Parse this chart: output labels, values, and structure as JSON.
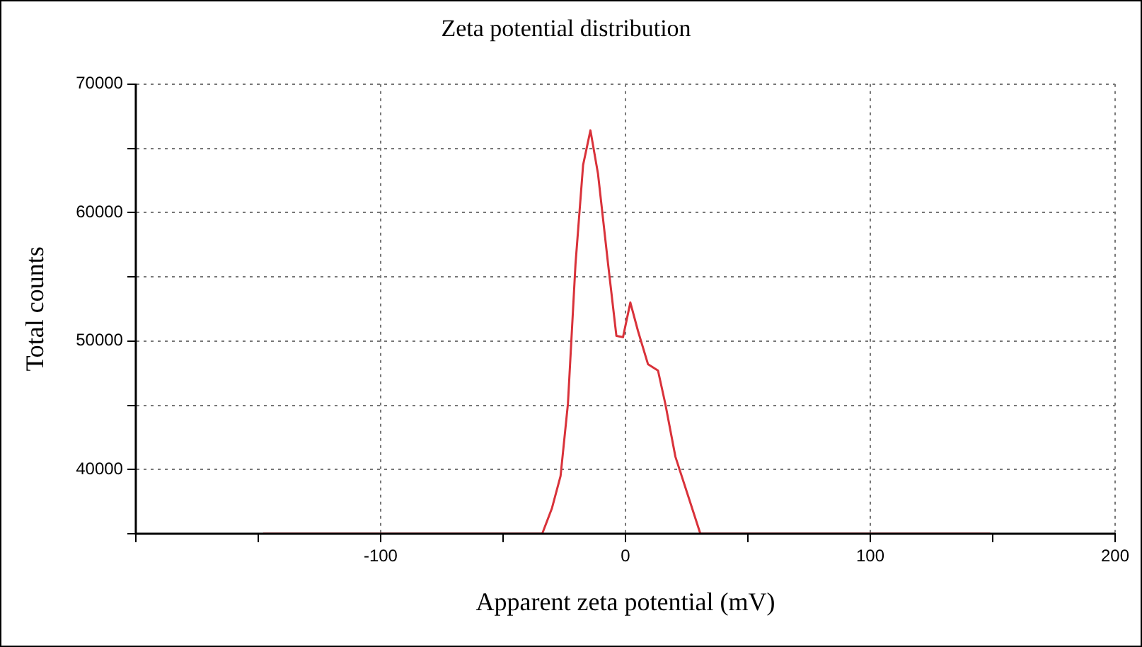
{
  "chart_data": {
    "type": "line",
    "title": "Zeta potential distribution",
    "xlabel": "Apparent zeta potential (mV)",
    "ylabel": "Total counts",
    "x": [
      -148,
      -34,
      -30,
      -26.5,
      -23.5,
      -20.4,
      -17.3,
      -14.3,
      -11.2,
      -7.1,
      -3.7,
      -1,
      2,
      5.1,
      9.2,
      13.3,
      16.3,
      20.4,
      25.5,
      30.6,
      149
    ],
    "series": [
      {
        "color": "#d9323a",
        "values": [
          35000,
          35000,
          37000,
          39500,
          45100,
          56000,
          63700,
          66400,
          63000,
          56000,
          50400,
          50300,
          53000,
          50800,
          48200,
          47700,
          45100,
          41000,
          38000,
          35000,
          35000
        ]
      }
    ],
    "xlim": [
      -200,
      200
    ],
    "xticks": [
      {
        "value": -200,
        "label": null
      },
      {
        "value": -150,
        "label": null
      },
      -100,
      {
        "value": -50,
        "label": null
      },
      0,
      {
        "value": 50,
        "label": null
      },
      100,
      {
        "value": 150,
        "label": null
      },
      200
    ],
    "ylim": [
      35000,
      70000
    ],
    "yticks": [
      {
        "value": 35000,
        "label": null
      },
      40000,
      {
        "value": 45000,
        "label": null
      },
      50000,
      {
        "value": 55000,
        "label": null
      },
      60000,
      {
        "value": 65000,
        "label": null
      },
      70000
    ],
    "grid": true,
    "legend": false,
    "marker": "none",
    "line_style": "solid"
  }
}
